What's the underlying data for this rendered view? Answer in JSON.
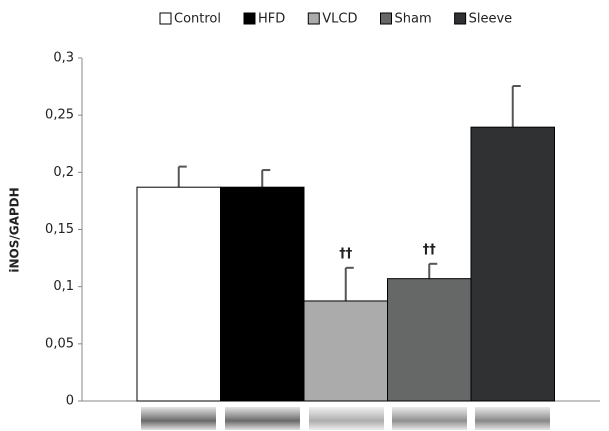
{
  "chart_data": {
    "type": "bar",
    "y_label": "iNOS/GAPDH",
    "categories": [
      "Control",
      "HFD",
      "VLCD",
      "Sham",
      "Sleeve"
    ],
    "colors": [
      "#ffffff",
      "#000000",
      "#ababab",
      "#666868",
      "#2f3133"
    ],
    "values": [
      0.187,
      0.187,
      0.0875,
      0.107,
      0.2395
    ],
    "errors": [
      0.018,
      0.015,
      0.029,
      0.013,
      0.036
    ],
    "ylim": [
      0,
      0.3
    ],
    "yticks": [
      0,
      {
        "value": 0.05,
        "label": "0,05"
      },
      {
        "value": 0.1,
        "label": "0,1"
      },
      {
        "value": 0.15,
        "label": "0,15"
      },
      {
        "value": 0.2,
        "label": "0,2"
      },
      {
        "value": 0.25,
        "label": "0,25"
      },
      {
        "value": 0.3,
        "label": "0,3"
      }
    ],
    "annotations": [
      {
        "label": "††",
        "category": "VLCD"
      },
      {
        "label": "††",
        "category": "Sham"
      }
    ]
  }
}
